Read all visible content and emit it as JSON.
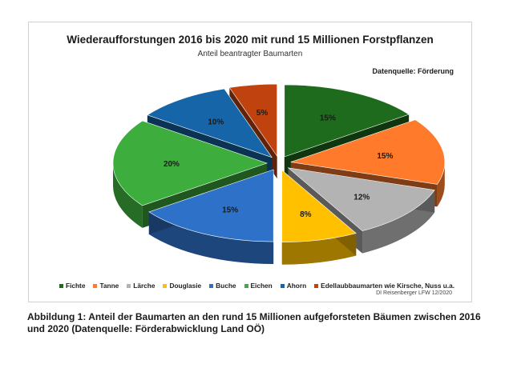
{
  "figure": {
    "caption": "Abbildung 1: Anteil der Baumarten an den rund 15 Millionen aufgeforsteten Bäumen zwischen 2016 und 2020 (Datenquelle: Förderabwicklung Land OÖ)",
    "source_note": "Datenquelle: Förderung",
    "credit": "DI Reisenberger LFW 12/2020"
  },
  "chart_data": {
    "type": "pie",
    "title": "Wiederaufforstungen 2016 bis 2020 mit rund 15 Millionen Forstpflanzen",
    "subtitle": "Anteil beantragter Baumarten",
    "value_suffix": "%",
    "style": "3d-exploded",
    "legend_position": "bottom",
    "slices": [
      {
        "label": "Fichte",
        "value": 15,
        "color": "#1e6b1e"
      },
      {
        "label": "Tanne",
        "value": 15,
        "color": "#ff7a2a"
      },
      {
        "label": "Lärche",
        "value": 12,
        "color": "#b3b3b3"
      },
      {
        "label": "Douglasie",
        "value": 8,
        "color": "#ffc000"
      },
      {
        "label": "Buche",
        "value": 15,
        "color": "#2e71c8"
      },
      {
        "label": "Eichen",
        "value": 20,
        "color": "#3dae3d"
      },
      {
        "label": "Ahorn",
        "value": 10,
        "color": "#1565a8"
      },
      {
        "label": "Edellaubbaumarten wie Kirsche, Nuss u.a.",
        "value": 5,
        "color": "#c0430f"
      }
    ]
  }
}
